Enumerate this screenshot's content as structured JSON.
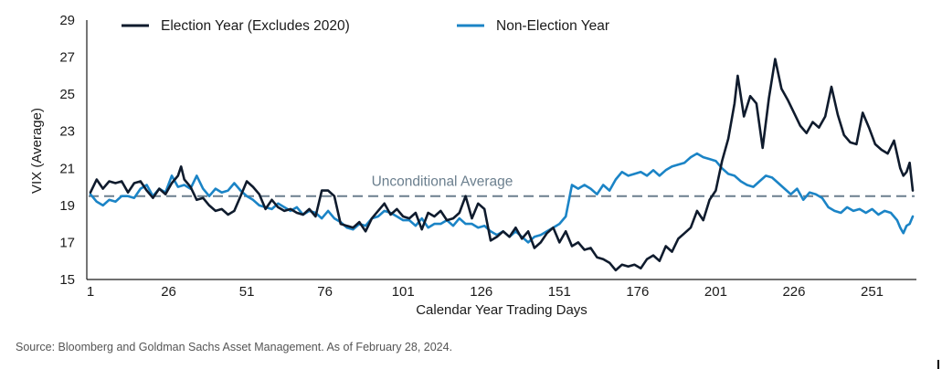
{
  "chart_data": {
    "type": "line",
    "title": "",
    "xlabel": "Calendar Year Trading Days",
    "ylabel": "VIX (Average)",
    "xlim": [
      1,
      264
    ],
    "ylim": [
      15,
      29
    ],
    "x_ticks": [
      1,
      26,
      51,
      76,
      101,
      126,
      151,
      176,
      201,
      226,
      251
    ],
    "y_ticks": [
      15,
      17,
      19,
      21,
      23,
      25,
      27,
      29
    ],
    "grid": false,
    "legend_position": "top",
    "reference_line": {
      "value": 19.5,
      "label": "Unconditional Average",
      "style": "dashed",
      "color": "#6b7f8e"
    },
    "series": [
      {
        "name": "Election Year (Excludes 2020)",
        "color": "#0f1b2d",
        "points": [
          [
            1,
            19.7
          ],
          [
            3,
            20.4
          ],
          [
            5,
            19.9
          ],
          [
            7,
            20.3
          ],
          [
            9,
            20.2
          ],
          [
            11,
            20.3
          ],
          [
            13,
            19.7
          ],
          [
            15,
            20.2
          ],
          [
            17,
            20.3
          ],
          [
            19,
            19.8
          ],
          [
            21,
            19.4
          ],
          [
            23,
            19.9
          ],
          [
            25,
            19.6
          ],
          [
            27,
            20.2
          ],
          [
            29,
            20.6
          ],
          [
            30,
            21.1
          ],
          [
            31,
            20.4
          ],
          [
            33,
            20.0
          ],
          [
            35,
            19.3
          ],
          [
            37,
            19.4
          ],
          [
            39,
            19.0
          ],
          [
            41,
            18.7
          ],
          [
            43,
            18.8
          ],
          [
            45,
            18.5
          ],
          [
            47,
            18.7
          ],
          [
            49,
            19.5
          ],
          [
            51,
            20.3
          ],
          [
            53,
            20.0
          ],
          [
            55,
            19.6
          ],
          [
            57,
            18.8
          ],
          [
            59,
            19.3
          ],
          [
            61,
            18.9
          ],
          [
            63,
            18.7
          ],
          [
            65,
            18.8
          ],
          [
            67,
            18.6
          ],
          [
            69,
            18.5
          ],
          [
            71,
            18.8
          ],
          [
            73,
            18.4
          ],
          [
            75,
            19.8
          ],
          [
            77,
            19.8
          ],
          [
            79,
            19.5
          ],
          [
            81,
            18.0
          ],
          [
            83,
            17.9
          ],
          [
            85,
            17.8
          ],
          [
            87,
            18.1
          ],
          [
            89,
            17.6
          ],
          [
            91,
            18.3
          ],
          [
            93,
            18.7
          ],
          [
            95,
            19.1
          ],
          [
            97,
            18.5
          ],
          [
            99,
            18.8
          ],
          [
            101,
            18.4
          ],
          [
            103,
            18.3
          ],
          [
            105,
            18.6
          ],
          [
            107,
            17.7
          ],
          [
            109,
            18.6
          ],
          [
            111,
            18.4
          ],
          [
            113,
            18.7
          ],
          [
            115,
            18.2
          ],
          [
            117,
            18.3
          ],
          [
            119,
            18.6
          ],
          [
            121,
            19.5
          ],
          [
            123,
            18.3
          ],
          [
            125,
            19.1
          ],
          [
            127,
            18.8
          ],
          [
            129,
            17.1
          ],
          [
            131,
            17.3
          ],
          [
            133,
            17.6
          ],
          [
            135,
            17.3
          ],
          [
            137,
            17.8
          ],
          [
            139,
            17.2
          ],
          [
            141,
            17.6
          ],
          [
            143,
            16.7
          ],
          [
            145,
            17.0
          ],
          [
            147,
            17.5
          ],
          [
            149,
            17.8
          ],
          [
            151,
            17.0
          ],
          [
            153,
            17.6
          ],
          [
            155,
            16.8
          ],
          [
            157,
            17.0
          ],
          [
            159,
            16.6
          ],
          [
            161,
            16.7
          ],
          [
            163,
            16.2
          ],
          [
            165,
            16.1
          ],
          [
            167,
            15.9
          ],
          [
            169,
            15.5
          ],
          [
            171,
            15.8
          ],
          [
            173,
            15.7
          ],
          [
            175,
            15.8
          ],
          [
            177,
            15.6
          ],
          [
            179,
            16.1
          ],
          [
            181,
            16.3
          ],
          [
            183,
            16.0
          ],
          [
            185,
            16.8
          ],
          [
            187,
            16.5
          ],
          [
            189,
            17.2
          ],
          [
            191,
            17.5
          ],
          [
            193,
            17.8
          ],
          [
            195,
            18.7
          ],
          [
            197,
            18.2
          ],
          [
            199,
            19.3
          ],
          [
            201,
            19.8
          ],
          [
            203,
            21.4
          ],
          [
            205,
            22.6
          ],
          [
            207,
            24.5
          ],
          [
            208,
            26.0
          ],
          [
            210,
            23.8
          ],
          [
            212,
            24.9
          ],
          [
            214,
            24.5
          ],
          [
            216,
            22.1
          ],
          [
            218,
            24.8
          ],
          [
            220,
            26.9
          ],
          [
            222,
            25.3
          ],
          [
            224,
            24.7
          ],
          [
            226,
            24.0
          ],
          [
            228,
            23.3
          ],
          [
            230,
            22.9
          ],
          [
            232,
            23.5
          ],
          [
            234,
            23.2
          ],
          [
            236,
            23.8
          ],
          [
            238,
            25.4
          ],
          [
            240,
            23.9
          ],
          [
            242,
            22.8
          ],
          [
            244,
            22.4
          ],
          [
            246,
            22.3
          ],
          [
            248,
            24.0
          ],
          [
            250,
            23.2
          ],
          [
            252,
            22.3
          ],
          [
            254,
            22.0
          ],
          [
            256,
            21.8
          ],
          [
            258,
            22.5
          ],
          [
            260,
            21.0
          ],
          [
            261,
            20.6
          ],
          [
            262,
            20.8
          ],
          [
            263,
            21.3
          ],
          [
            264,
            19.8
          ]
        ]
      },
      {
        "name": "Non-Election Year",
        "color": "#1b84c6",
        "points": [
          [
            1,
            19.6
          ],
          [
            3,
            19.2
          ],
          [
            5,
            19.0
          ],
          [
            7,
            19.3
          ],
          [
            9,
            19.2
          ],
          [
            11,
            19.5
          ],
          [
            13,
            19.5
          ],
          [
            15,
            19.4
          ],
          [
            17,
            19.9
          ],
          [
            19,
            20.1
          ],
          [
            21,
            19.5
          ],
          [
            23,
            19.9
          ],
          [
            25,
            19.7
          ],
          [
            27,
            20.6
          ],
          [
            29,
            20.0
          ],
          [
            31,
            20.1
          ],
          [
            33,
            19.9
          ],
          [
            35,
            20.6
          ],
          [
            37,
            19.9
          ],
          [
            39,
            19.5
          ],
          [
            41,
            19.9
          ],
          [
            43,
            19.7
          ],
          [
            45,
            19.8
          ],
          [
            47,
            20.2
          ],
          [
            49,
            19.8
          ],
          [
            51,
            19.5
          ],
          [
            53,
            19.3
          ],
          [
            55,
            19.0
          ],
          [
            57,
            18.9
          ],
          [
            59,
            18.8
          ],
          [
            61,
            19.1
          ],
          [
            63,
            18.9
          ],
          [
            65,
            18.7
          ],
          [
            67,
            18.9
          ],
          [
            69,
            18.5
          ],
          [
            71,
            18.7
          ],
          [
            73,
            18.6
          ],
          [
            75,
            18.3
          ],
          [
            77,
            18.7
          ],
          [
            79,
            18.3
          ],
          [
            81,
            18.1
          ],
          [
            83,
            17.8
          ],
          [
            85,
            17.7
          ],
          [
            87,
            18.0
          ],
          [
            89,
            17.9
          ],
          [
            91,
            18.3
          ],
          [
            93,
            18.4
          ],
          [
            95,
            18.7
          ],
          [
            97,
            18.6
          ],
          [
            99,
            18.4
          ],
          [
            101,
            18.2
          ],
          [
            103,
            18.2
          ],
          [
            105,
            17.9
          ],
          [
            107,
            18.3
          ],
          [
            109,
            17.8
          ],
          [
            111,
            18.0
          ],
          [
            113,
            18.0
          ],
          [
            115,
            18.2
          ],
          [
            117,
            17.9
          ],
          [
            119,
            18.3
          ],
          [
            121,
            18.0
          ],
          [
            123,
            18.0
          ],
          [
            125,
            17.8
          ],
          [
            127,
            17.9
          ],
          [
            129,
            17.6
          ],
          [
            131,
            17.4
          ],
          [
            133,
            17.6
          ],
          [
            135,
            17.3
          ],
          [
            137,
            17.6
          ],
          [
            139,
            17.3
          ],
          [
            141,
            17.0
          ],
          [
            143,
            17.3
          ],
          [
            145,
            17.4
          ],
          [
            147,
            17.6
          ],
          [
            149,
            17.8
          ],
          [
            151,
            18.0
          ],
          [
            153,
            18.4
          ],
          [
            155,
            20.1
          ],
          [
            157,
            19.9
          ],
          [
            159,
            20.1
          ],
          [
            161,
            19.9
          ],
          [
            163,
            19.6
          ],
          [
            165,
            20.1
          ],
          [
            167,
            19.8
          ],
          [
            169,
            20.4
          ],
          [
            171,
            20.8
          ],
          [
            173,
            20.6
          ],
          [
            175,
            20.7
          ],
          [
            177,
            20.8
          ],
          [
            179,
            20.6
          ],
          [
            181,
            20.9
          ],
          [
            183,
            20.6
          ],
          [
            185,
            20.9
          ],
          [
            187,
            21.1
          ],
          [
            189,
            21.2
          ],
          [
            191,
            21.3
          ],
          [
            193,
            21.6
          ],
          [
            195,
            21.8
          ],
          [
            197,
            21.6
          ],
          [
            199,
            21.5
          ],
          [
            201,
            21.4
          ],
          [
            203,
            21.0
          ],
          [
            205,
            20.7
          ],
          [
            207,
            20.6
          ],
          [
            209,
            20.3
          ],
          [
            211,
            20.1
          ],
          [
            213,
            20.0
          ],
          [
            215,
            20.3
          ],
          [
            217,
            20.6
          ],
          [
            219,
            20.5
          ],
          [
            221,
            20.2
          ],
          [
            223,
            19.9
          ],
          [
            225,
            19.6
          ],
          [
            227,
            19.9
          ],
          [
            229,
            19.3
          ],
          [
            231,
            19.7
          ],
          [
            233,
            19.6
          ],
          [
            235,
            19.4
          ],
          [
            237,
            18.9
          ],
          [
            239,
            18.7
          ],
          [
            241,
            18.6
          ],
          [
            243,
            18.9
          ],
          [
            245,
            18.7
          ],
          [
            247,
            18.8
          ],
          [
            249,
            18.6
          ],
          [
            251,
            18.8
          ],
          [
            253,
            18.5
          ],
          [
            255,
            18.7
          ],
          [
            257,
            18.6
          ],
          [
            259,
            18.2
          ],
          [
            260,
            17.8
          ],
          [
            261,
            17.5
          ],
          [
            262,
            17.9
          ],
          [
            263,
            18.0
          ],
          [
            264,
            18.4
          ]
        ]
      }
    ]
  },
  "source_note": "Source: Bloomberg and Goldman Sachs Asset Management. As of February 28, 2024."
}
